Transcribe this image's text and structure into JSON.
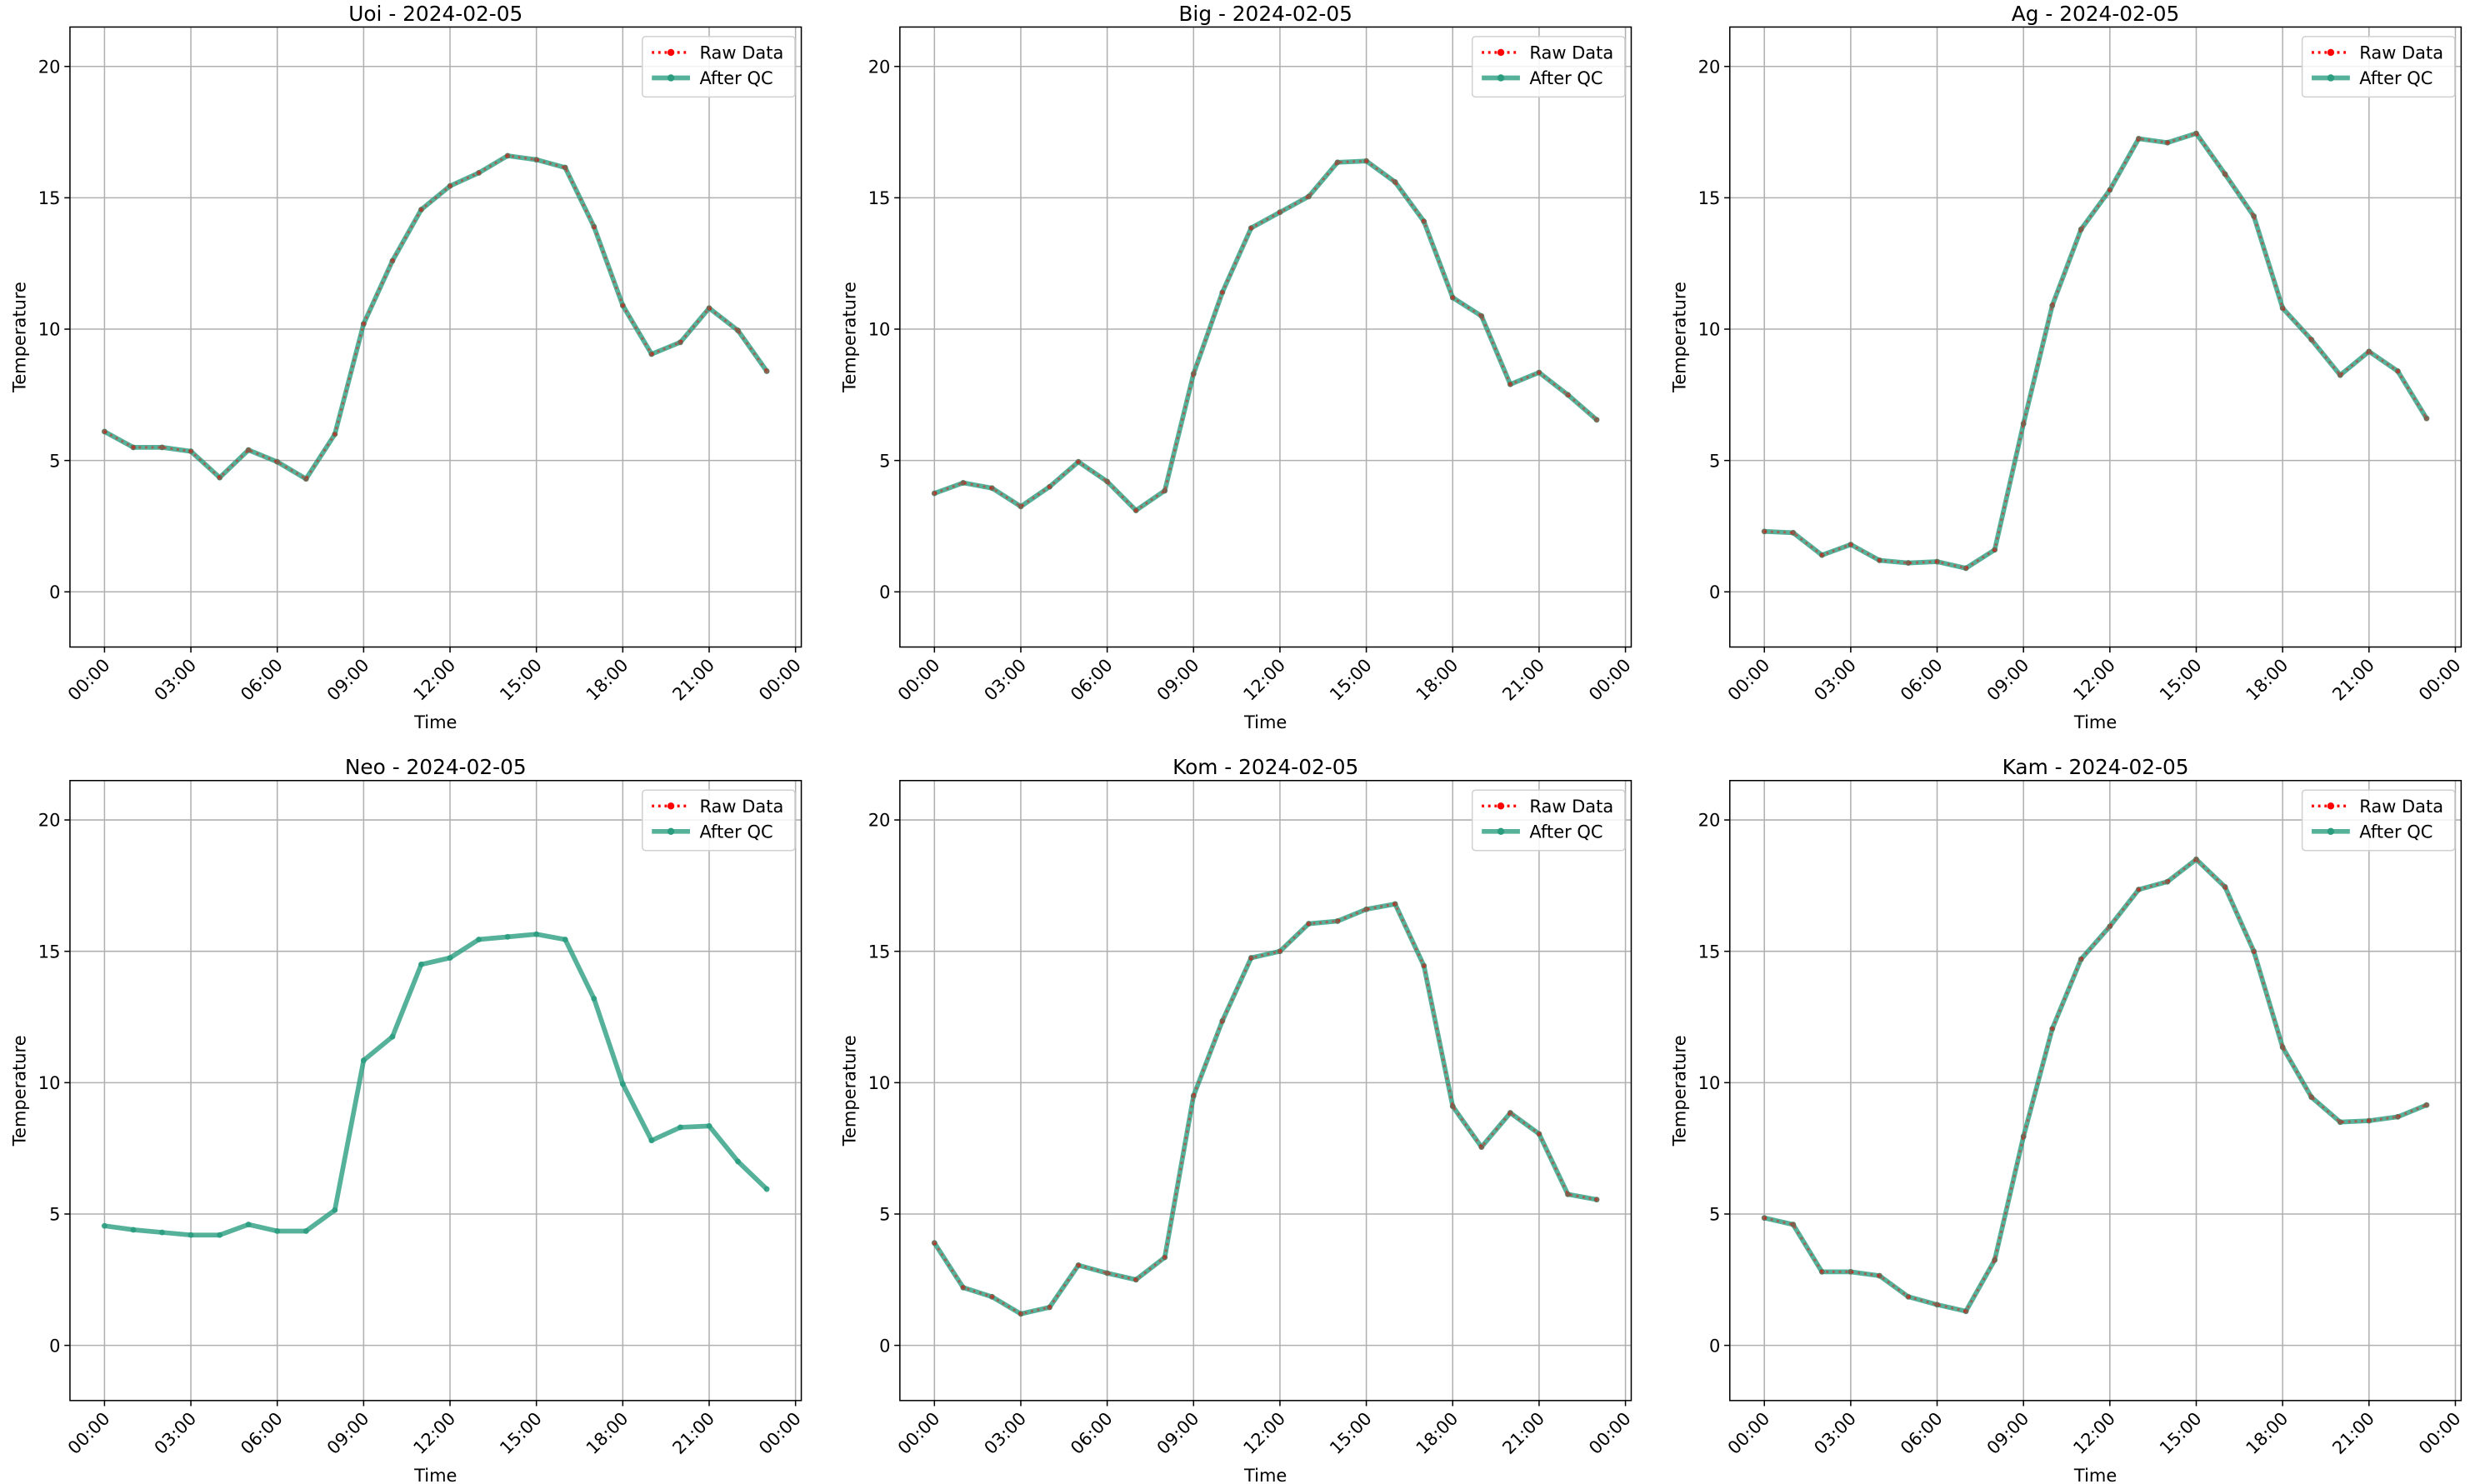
{
  "chart_data": [
    {
      "type": "line",
      "title": "Uoi - 2024-02-05",
      "x_label": "Time",
      "y_label": "Temperature",
      "x": [
        0,
        1,
        2,
        3,
        4,
        5,
        6,
        7,
        8,
        9,
        10,
        11,
        12,
        13,
        14,
        15,
        16,
        17,
        18,
        19,
        20,
        21,
        22,
        23
      ],
      "series": [
        {
          "name": "Raw Data",
          "color": "#ff0000",
          "values": [
            6.1,
            5.5,
            5.5,
            5.35,
            4.35,
            5.4,
            4.95,
            4.3,
            6.0,
            10.2,
            12.6,
            14.55,
            15.45,
            15.95,
            16.6,
            16.45,
            16.15,
            13.9,
            10.9,
            9.05,
            9.5,
            10.8,
            9.95,
            8.4
          ]
        },
        {
          "name": "After QC",
          "color": "#2a9d7f",
          "values": [
            6.1,
            5.5,
            5.5,
            5.35,
            4.35,
            5.4,
            4.95,
            4.3,
            6.0,
            10.2,
            12.6,
            14.55,
            15.45,
            15.95,
            16.6,
            16.45,
            16.15,
            13.9,
            10.9,
            9.05,
            9.5,
            10.8,
            9.95,
            8.4
          ]
        }
      ],
      "xlim": [
        -1.2,
        24.2
      ],
      "xticks": [
        {
          "value": 0,
          "label": "00:00"
        },
        {
          "value": 3,
          "label": "03:00"
        },
        {
          "value": 6,
          "label": "06:00"
        },
        {
          "value": 9,
          "label": "09:00"
        },
        {
          "value": 12,
          "label": "12:00"
        },
        {
          "value": 15,
          "label": "15:00"
        },
        {
          "value": 18,
          "label": "18:00"
        },
        {
          "value": 21,
          "label": "21:00"
        },
        {
          "value": 24,
          "label": "00:00"
        }
      ],
      "ylim": [
        -2.1,
        21.5
      ],
      "yticks": [
        0,
        5,
        10,
        15,
        20
      ],
      "grid": true,
      "legend": "upper right"
    },
    {
      "type": "line",
      "title": "Big - 2024-02-05",
      "x_label": "Time",
      "y_label": "Temperature",
      "x": [
        0,
        1,
        2,
        3,
        4,
        5,
        6,
        7,
        8,
        9,
        10,
        11,
        12,
        13,
        14,
        15,
        16,
        17,
        18,
        19,
        20,
        21,
        22,
        23
      ],
      "series": [
        {
          "name": "Raw Data",
          "color": "#ff0000",
          "values": [
            3.75,
            4.15,
            3.95,
            3.25,
            4.0,
            4.95,
            4.2,
            3.1,
            3.85,
            8.3,
            11.4,
            13.85,
            14.45,
            15.05,
            16.35,
            16.4,
            15.6,
            14.1,
            11.2,
            10.5,
            7.9,
            8.35,
            7.5,
            6.55
          ]
        },
        {
          "name": "After QC",
          "color": "#2a9d7f",
          "values": [
            3.75,
            4.15,
            3.95,
            3.25,
            4.0,
            4.95,
            4.2,
            3.1,
            3.85,
            8.3,
            11.4,
            13.85,
            14.45,
            15.05,
            16.35,
            16.4,
            15.6,
            14.1,
            11.2,
            10.5,
            7.9,
            8.35,
            7.5,
            6.55
          ]
        }
      ],
      "xlim": [
        -1.2,
        24.2
      ],
      "xticks": [
        {
          "value": 0,
          "label": "00:00"
        },
        {
          "value": 3,
          "label": "03:00"
        },
        {
          "value": 6,
          "label": "06:00"
        },
        {
          "value": 9,
          "label": "09:00"
        },
        {
          "value": 12,
          "label": "12:00"
        },
        {
          "value": 15,
          "label": "15:00"
        },
        {
          "value": 18,
          "label": "18:00"
        },
        {
          "value": 21,
          "label": "21:00"
        },
        {
          "value": 24,
          "label": "00:00"
        }
      ],
      "ylim": [
        -2.1,
        21.5
      ],
      "yticks": [
        0,
        5,
        10,
        15,
        20
      ],
      "grid": true,
      "legend": "upper right"
    },
    {
      "type": "line",
      "title": "Ag - 2024-02-05",
      "x_label": "Time",
      "y_label": "Temperature",
      "x": [
        0,
        1,
        2,
        3,
        4,
        5,
        6,
        7,
        8,
        9,
        10,
        11,
        12,
        13,
        14,
        15,
        16,
        17,
        18,
        19,
        20,
        21,
        22,
        23
      ],
      "series": [
        {
          "name": "Raw Data",
          "color": "#ff0000",
          "values": [
            2.3,
            2.25,
            1.4,
            1.8,
            1.2,
            1.1,
            1.15,
            0.9,
            1.6,
            6.4,
            10.9,
            13.8,
            15.3,
            17.25,
            17.1,
            17.45,
            15.9,
            14.3,
            10.8,
            9.6,
            8.25,
            9.15,
            8.4,
            6.6
          ]
        },
        {
          "name": "After QC",
          "color": "#2a9d7f",
          "values": [
            2.3,
            2.25,
            1.4,
            1.8,
            1.2,
            1.1,
            1.15,
            0.9,
            1.6,
            6.4,
            10.9,
            13.8,
            15.3,
            17.25,
            17.1,
            17.45,
            15.9,
            14.3,
            10.8,
            9.6,
            8.25,
            9.15,
            8.4,
            6.6
          ]
        }
      ],
      "xlim": [
        -1.2,
        24.2
      ],
      "xticks": [
        {
          "value": 0,
          "label": "00:00"
        },
        {
          "value": 3,
          "label": "03:00"
        },
        {
          "value": 6,
          "label": "06:00"
        },
        {
          "value": 9,
          "label": "09:00"
        },
        {
          "value": 12,
          "label": "12:00"
        },
        {
          "value": 15,
          "label": "15:00"
        },
        {
          "value": 18,
          "label": "18:00"
        },
        {
          "value": 21,
          "label": "21:00"
        },
        {
          "value": 24,
          "label": "00:00"
        }
      ],
      "ylim": [
        -2.1,
        21.5
      ],
      "yticks": [
        0,
        5,
        10,
        15,
        20
      ],
      "grid": true,
      "legend": "upper right"
    },
    {
      "type": "line",
      "title": "Neo - 2024-02-05",
      "x_label": "Time",
      "y_label": "Temperature",
      "x": [
        0,
        1,
        2,
        3,
        4,
        5,
        6,
        7,
        8,
        9,
        10,
        11,
        12,
        13,
        14,
        15,
        16,
        17,
        18,
        19,
        20,
        21,
        22,
        23
      ],
      "series": [
        {
          "name": "Raw Data",
          "color": "#ff0000",
          "values": [
            null,
            null,
            null,
            null,
            null,
            null,
            null,
            null,
            null,
            null,
            null,
            null,
            null,
            null,
            null,
            null,
            null,
            null,
            null,
            null,
            null,
            null,
            null,
            null
          ]
        },
        {
          "name": "After QC",
          "color": "#2a9d7f",
          "values": [
            4.55,
            4.4,
            4.3,
            4.2,
            4.2,
            4.6,
            4.35,
            4.35,
            5.15,
            10.85,
            11.75,
            14.5,
            14.75,
            15.45,
            15.55,
            15.65,
            15.45,
            13.2,
            9.95,
            7.8,
            8.3,
            8.35,
            7.0,
            5.95
          ]
        }
      ],
      "xlim": [
        -1.2,
        24.2
      ],
      "xticks": [
        {
          "value": 0,
          "label": "00:00"
        },
        {
          "value": 3,
          "label": "03:00"
        },
        {
          "value": 6,
          "label": "06:00"
        },
        {
          "value": 9,
          "label": "09:00"
        },
        {
          "value": 12,
          "label": "12:00"
        },
        {
          "value": 15,
          "label": "15:00"
        },
        {
          "value": 18,
          "label": "18:00"
        },
        {
          "value": 21,
          "label": "21:00"
        },
        {
          "value": 24,
          "label": "00:00"
        }
      ],
      "ylim": [
        -2.1,
        21.5
      ],
      "yticks": [
        0,
        5,
        10,
        15,
        20
      ],
      "grid": true,
      "legend": "upper right"
    },
    {
      "type": "line",
      "title": "Kom - 2024-02-05",
      "x_label": "Time",
      "y_label": "Temperature",
      "x": [
        0,
        1,
        2,
        3,
        4,
        5,
        6,
        7,
        8,
        9,
        10,
        11,
        12,
        13,
        14,
        15,
        16,
        17,
        18,
        19,
        20,
        21,
        22,
        23
      ],
      "series": [
        {
          "name": "Raw Data",
          "color": "#ff0000",
          "values": [
            3.9,
            2.2,
            1.85,
            1.2,
            1.45,
            3.05,
            2.75,
            2.5,
            3.35,
            9.5,
            12.35,
            14.75,
            15.0,
            16.05,
            16.15,
            16.6,
            16.8,
            14.45,
            9.1,
            7.55,
            8.85,
            8.05,
            5.75,
            5.55
          ]
        },
        {
          "name": "After QC",
          "color": "#2a9d7f",
          "values": [
            3.9,
            2.2,
            1.85,
            1.2,
            1.45,
            3.05,
            2.75,
            2.5,
            3.35,
            9.5,
            12.35,
            14.75,
            15.0,
            16.05,
            16.15,
            16.6,
            16.8,
            14.45,
            9.1,
            7.55,
            8.85,
            8.05,
            5.75,
            5.55
          ]
        }
      ],
      "xlim": [
        -1.2,
        24.2
      ],
      "xticks": [
        {
          "value": 0,
          "label": "00:00"
        },
        {
          "value": 3,
          "label": "03:00"
        },
        {
          "value": 6,
          "label": "06:00"
        },
        {
          "value": 9,
          "label": "09:00"
        },
        {
          "value": 12,
          "label": "12:00"
        },
        {
          "value": 15,
          "label": "15:00"
        },
        {
          "value": 18,
          "label": "18:00"
        },
        {
          "value": 21,
          "label": "21:00"
        },
        {
          "value": 24,
          "label": "00:00"
        }
      ],
      "ylim": [
        -2.1,
        21.5
      ],
      "yticks": [
        0,
        5,
        10,
        15,
        20
      ],
      "grid": true,
      "legend": "upper right"
    },
    {
      "type": "line",
      "title": "Kam - 2024-02-05",
      "x_label": "Time",
      "y_label": "Temperature",
      "x": [
        0,
        1,
        2,
        3,
        4,
        5,
        6,
        7,
        8,
        9,
        10,
        11,
        12,
        13,
        14,
        15,
        16,
        17,
        18,
        19,
        20,
        21,
        22,
        23
      ],
      "series": [
        {
          "name": "Raw Data",
          "color": "#ff0000",
          "values": [
            4.85,
            4.6,
            2.8,
            2.8,
            2.65,
            1.85,
            1.55,
            1.3,
            3.25,
            7.95,
            12.05,
            14.7,
            15.95,
            17.35,
            17.65,
            18.5,
            17.45,
            15.0,
            11.35,
            9.45,
            8.5,
            8.55,
            8.7,
            9.15
          ]
        },
        {
          "name": "After QC",
          "color": "#2a9d7f",
          "values": [
            4.85,
            4.6,
            2.8,
            2.8,
            2.65,
            1.85,
            1.55,
            1.3,
            3.25,
            7.95,
            12.05,
            14.7,
            15.95,
            17.35,
            17.65,
            18.5,
            17.45,
            15.0,
            11.35,
            9.45,
            8.5,
            8.55,
            8.7,
            9.15
          ]
        }
      ],
      "xlim": [
        -1.2,
        24.2
      ],
      "xticks": [
        {
          "value": 0,
          "label": "00:00"
        },
        {
          "value": 3,
          "label": "03:00"
        },
        {
          "value": 6,
          "label": "06:00"
        },
        {
          "value": 9,
          "label": "09:00"
        },
        {
          "value": 12,
          "label": "12:00"
        },
        {
          "value": 15,
          "label": "15:00"
        },
        {
          "value": 18,
          "label": "18:00"
        },
        {
          "value": 21,
          "label": "21:00"
        },
        {
          "value": 24,
          "label": "00:00"
        }
      ],
      "ylim": [
        -2.1,
        21.5
      ],
      "yticks": [
        0,
        5,
        10,
        15,
        20
      ],
      "grid": true,
      "legend": "upper right"
    }
  ]
}
